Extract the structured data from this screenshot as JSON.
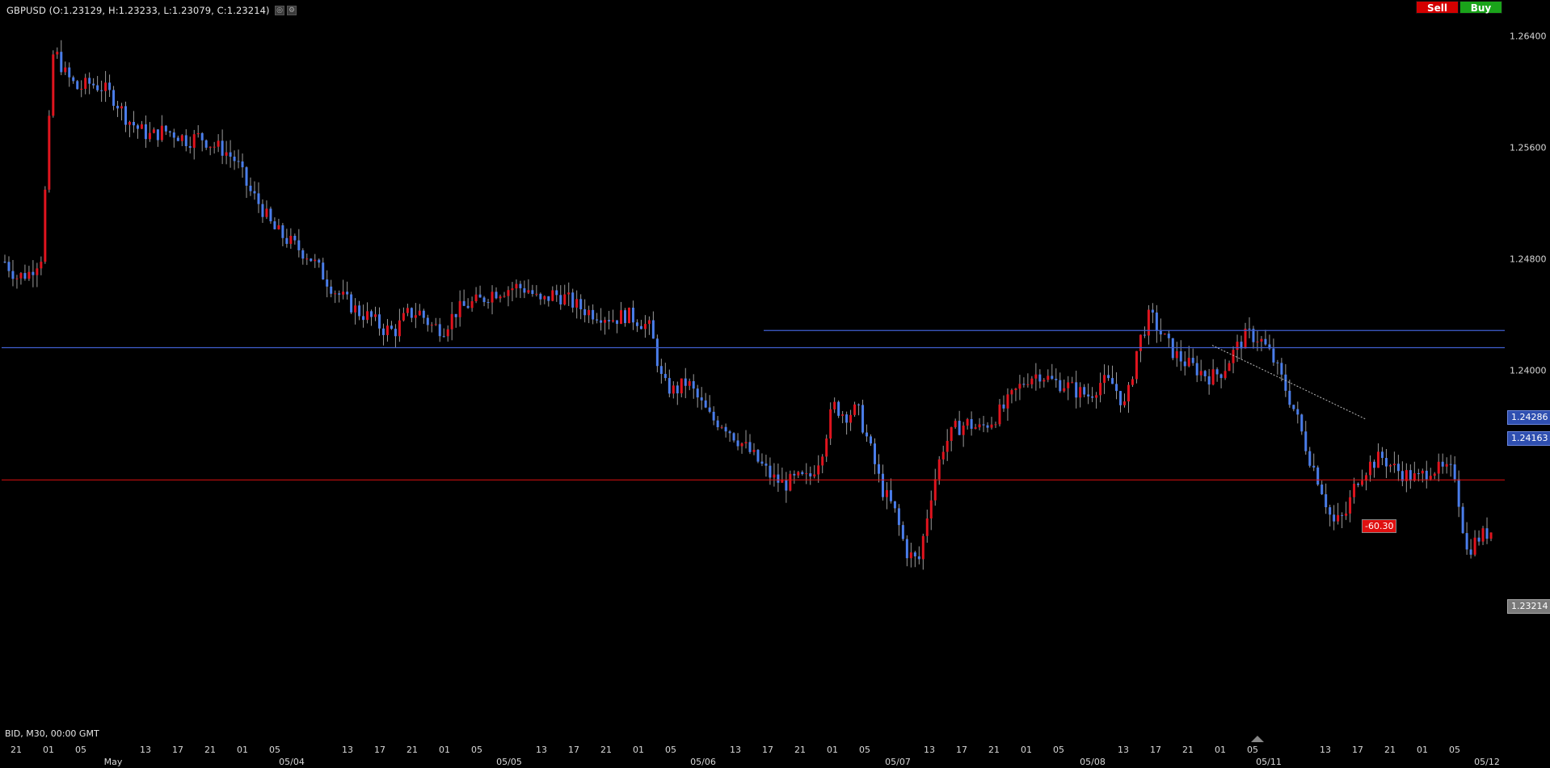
{
  "header": {
    "symbol_line": "GBPUSD (O:1.23129, H:1.23233, L:1.23079, C:1.23214)",
    "icons": [
      "settings-icon",
      "gear-icon"
    ]
  },
  "buttons": {
    "sell_label": "Sell",
    "buy_label": "Buy"
  },
  "colors": {
    "up_candle": "#e0141e",
    "down_candle": "#4a7dea",
    "level_line": "#3f5fcf",
    "bid_line": "#e01010",
    "grid_text": "#d8d8d8"
  },
  "price_axis": {
    "ticks": [
      "1.26400",
      "1.25600",
      "1.24800",
      "1.24000"
    ],
    "levels": [
      {
        "label": "1.24286",
        "type": "horizontal-line"
      },
      {
        "label": "1.24163",
        "type": "horizontal-line"
      }
    ],
    "bid_label": "1.23214"
  },
  "measure_label": "-60.30",
  "footer": {
    "info": "BID, M30, 00:00 GMT"
  },
  "time_axis": {
    "hours": [
      "21",
      "01",
      "05",
      "13",
      "17",
      "21",
      "01",
      "05",
      "13",
      "17",
      "21",
      "01",
      "05",
      "13",
      "17",
      "21",
      "01",
      "05",
      "13",
      "17",
      "21",
      "01",
      "05",
      "13",
      "17",
      "21",
      "01",
      "05",
      "13",
      "17",
      "21",
      "01",
      "05",
      "13",
      "17",
      "21",
      "01",
      "05"
    ],
    "dates": [
      "May",
      "05/04",
      "05/05",
      "05/06",
      "05/07",
      "05/08",
      "05/11",
      "05/12"
    ]
  },
  "chart_data": {
    "type": "candlestick",
    "symbol": "GBPUSD",
    "timeframe": "M30",
    "y_range": [
      1.215,
      1.266
    ],
    "y_ticks": [
      1.264,
      1.256,
      1.248,
      1.24
    ],
    "horizontal_lines": [
      1.24286,
      1.24163,
      1.23214
    ],
    "last_ohlc": {
      "open": 1.23129,
      "high": 1.23233,
      "low": 1.23079,
      "close": 1.23214
    },
    "close_path": [
      1.2478,
      1.2467,
      1.247,
      1.2482,
      1.2631,
      1.2612,
      1.2602,
      1.2606,
      1.2603,
      1.2595,
      1.2581,
      1.2573,
      1.2568,
      1.2572,
      1.257,
      1.2565,
      1.2568,
      1.2562,
      1.2558,
      1.255,
      1.253,
      1.2518,
      1.2502,
      1.2495,
      1.2488,
      1.2482,
      1.247,
      1.2458,
      1.245,
      1.2442,
      1.2438,
      1.243,
      1.2428,
      1.244,
      1.2442,
      1.2432,
      1.243,
      1.2442,
      1.2447,
      1.245,
      1.2456,
      1.2458,
      1.246,
      1.2458,
      1.2448,
      1.2455,
      1.2452,
      1.2446,
      1.2442,
      1.244,
      1.2437,
      1.244,
      1.2436,
      1.243,
      1.239,
      1.2385,
      1.2392,
      1.2378,
      1.2365,
      1.2362,
      1.2352,
      1.2343,
      1.2333,
      1.2323,
      1.2318,
      1.2322,
      1.2322,
      1.234,
      1.2375,
      1.2368,
      1.2372,
      1.2345,
      1.2315,
      1.23,
      1.227,
      1.2262,
      1.231,
      1.2345,
      1.2358,
      1.2362,
      1.2358,
      1.2364,
      1.2373,
      1.2385,
      1.2395,
      1.2398,
      1.2392,
      1.239,
      1.2385,
      1.2382,
      1.2392,
      1.239,
      1.2373,
      1.2418,
      1.244,
      1.2425,
      1.2412,
      1.2405,
      1.24,
      1.2395,
      1.24,
      1.2415,
      1.2426,
      1.2423,
      1.241,
      1.239,
      1.2368,
      1.234,
      1.2318,
      1.229,
      1.2295,
      1.2322,
      1.2332,
      1.2338,
      1.233,
      1.2325,
      1.2322,
      1.233,
      1.2328,
      1.2327,
      1.227,
      1.228,
      1.2285
    ]
  }
}
